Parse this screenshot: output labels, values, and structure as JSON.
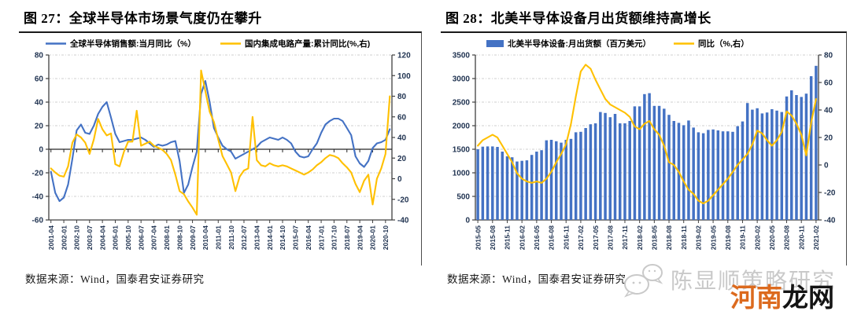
{
  "figures": [
    {
      "title": "图 27：全球半导体市场景气度仍在攀升",
      "source_label": "数据来源：Wind，国泰君安证券研究"
    },
    {
      "title": "图 28：北美半导体设备月出货额维持高增长",
      "source_label": "数据来源：Wind，国泰君安证券研究"
    }
  ],
  "watermark": {
    "icon": "wechat-bubbles-icon",
    "text_gray": "陈显顺策略研究",
    "text_orange": "河南",
    "text_black": "龙网",
    "color_gray": "#c9c9c9",
    "color_orange": "#DC6A1E"
  },
  "colors": {
    "series_blue": "#4472C4",
    "series_yellow": "#FFC000",
    "axis_text": "#1F3250",
    "axis_line": "#404040",
    "gridline": "#cfcfcf"
  },
  "chart_data": [
    {
      "type": "line",
      "title": "图 27：全球半导体市场景气度仍在攀升",
      "legend": [
        "全球半导体销售额:当月同比（%）",
        "国内集成电路产量:累计同比(%,右)"
      ],
      "legend_position": "top",
      "grid": true,
      "ylim_left": [
        -60,
        80
      ],
      "yticks_left": [
        -60,
        -40,
        -20,
        0,
        20,
        40,
        60,
        80
      ],
      "ylim_right": [
        -40,
        120
      ],
      "yticks_right": [
        -40,
        -20,
        0,
        20,
        40,
        60,
        80,
        100,
        120
      ],
      "x_tick_step": 3,
      "x_ticks": [
        "2001-04",
        "2002-01",
        "2002-10",
        "2003-07",
        "2004-04",
        "2005-01",
        "2005-10",
        "2006-07",
        "2007-04",
        "2008-01",
        "2008-10",
        "2009-07",
        "2010-04",
        "2011-01",
        "2011-10",
        "2012-07",
        "2013-04",
        "2014-01",
        "2014-10",
        "2015-07",
        "2016-04",
        "2017-01",
        "2017-10",
        "2018-07",
        "2019-04",
        "2020-01",
        "2020-10"
      ],
      "x": [
        "2001-04",
        "2001-07",
        "2001-10",
        "2002-01",
        "2002-04",
        "2002-07",
        "2002-10",
        "2003-01",
        "2003-04",
        "2003-07",
        "2003-10",
        "2004-01",
        "2004-04",
        "2004-07",
        "2004-10",
        "2005-01",
        "2005-04",
        "2005-07",
        "2005-10",
        "2006-01",
        "2006-04",
        "2006-07",
        "2006-10",
        "2007-01",
        "2007-04",
        "2007-07",
        "2007-10",
        "2008-01",
        "2008-04",
        "2008-07",
        "2008-10",
        "2009-01",
        "2009-04",
        "2009-07",
        "2009-10",
        "2010-01",
        "2010-04",
        "2010-07",
        "2010-10",
        "2011-01",
        "2011-04",
        "2011-07",
        "2011-10",
        "2012-01",
        "2012-04",
        "2012-07",
        "2012-10",
        "2013-01",
        "2013-04",
        "2013-07",
        "2013-10",
        "2014-01",
        "2014-04",
        "2014-07",
        "2014-10",
        "2015-01",
        "2015-04",
        "2015-07",
        "2015-10",
        "2016-01",
        "2016-04",
        "2016-07",
        "2016-10",
        "2017-01",
        "2017-04",
        "2017-07",
        "2017-10",
        "2018-01",
        "2018-04",
        "2018-07",
        "2018-10",
        "2019-01",
        "2019-04",
        "2019-07",
        "2019-10",
        "2020-01",
        "2020-04",
        "2020-07",
        "2020-10",
        "2021-01"
      ],
      "series": [
        {
          "name": "全球半导体销售额:当月同比（%）",
          "axis": "left",
          "type": "line",
          "color": "#4472C4",
          "values": [
            -19,
            -37,
            -44,
            -41,
            -30,
            -8,
            16,
            21,
            14,
            13,
            20,
            30,
            36,
            40,
            27,
            13,
            6,
            7,
            8,
            8,
            9,
            10,
            8,
            5,
            2,
            4,
            3,
            4,
            6,
            7,
            -10,
            -37,
            -30,
            -15,
            -2,
            47,
            58,
            40,
            18,
            10,
            3,
            0,
            -2,
            -8,
            -6,
            -4,
            -2,
            0,
            2,
            6,
            8,
            10,
            9,
            8,
            10,
            8,
            5,
            -2,
            -6,
            -7,
            -6,
            0,
            5,
            14,
            21,
            24,
            26,
            26,
            24,
            18,
            12,
            -6,
            -12,
            -15,
            -10,
            1,
            5,
            6,
            8,
            17
          ]
        },
        {
          "name": "国内集成电路产量:累计同比(%,右)",
          "axis": "right",
          "type": "line",
          "color": "#FFC000",
          "values": [
            10,
            6,
            3,
            2,
            12,
            35,
            43,
            40,
            35,
            24,
            38,
            58,
            48,
            42,
            44,
            14,
            12,
            26,
            36,
            36,
            66,
            32,
            34,
            36,
            32,
            30,
            28,
            24,
            18,
            4,
            -12,
            -15,
            -22,
            -28,
            -35,
            105,
            85,
            65,
            55,
            38,
            22,
            14,
            6,
            -12,
            2,
            8,
            10,
            60,
            18,
            13,
            12,
            15,
            13,
            12,
            13,
            12,
            10,
            8,
            6,
            4,
            6,
            9,
            13,
            16,
            20,
            23,
            22,
            20,
            15,
            11,
            6,
            -5,
            -13,
            -2,
            4,
            -25,
            0,
            10,
            24,
            80
          ]
        }
      ]
    },
    {
      "type": "bar",
      "title": "图 28：北美半导体设备月出货额维持高增长",
      "legend": [
        "北美半导体设备:月出货额（百万美元）",
        "同比（%,右）"
      ],
      "legend_position": "top",
      "grid": true,
      "ylim_left": [
        0,
        3500
      ],
      "yticks_left": [
        0,
        500,
        1000,
        1500,
        2000,
        2500,
        3000,
        3500
      ],
      "ylim_right": [
        -40,
        80
      ],
      "yticks_right": [
        -40,
        -20,
        0,
        20,
        40,
        60,
        80
      ],
      "x_tick_step": 3,
      "x_ticks": [
        "2015-05",
        "2015-08",
        "2015-11",
        "2016-02",
        "2016-05",
        "2016-08",
        "2016-11",
        "2017-02",
        "2017-05",
        "2017-08",
        "2017-11",
        "2018-02",
        "2018-05",
        "2018-08",
        "2018-11",
        "2019-02",
        "2019-05",
        "2019-08",
        "2019-11",
        "2020-02",
        "2020-05",
        "2020-08",
        "2020-11",
        "2021-02"
      ],
      "x": [
        "2015-05",
        "2015-06",
        "2015-07",
        "2015-08",
        "2015-09",
        "2015-10",
        "2015-11",
        "2015-12",
        "2016-01",
        "2016-02",
        "2016-03",
        "2016-04",
        "2016-05",
        "2016-06",
        "2016-07",
        "2016-08",
        "2016-09",
        "2016-10",
        "2016-11",
        "2016-12",
        "2017-01",
        "2017-02",
        "2017-03",
        "2017-04",
        "2017-05",
        "2017-06",
        "2017-07",
        "2017-08",
        "2017-09",
        "2017-10",
        "2017-11",
        "2017-12",
        "2018-01",
        "2018-02",
        "2018-03",
        "2018-04",
        "2018-05",
        "2018-06",
        "2018-07",
        "2018-08",
        "2018-09",
        "2018-10",
        "2018-11",
        "2018-12",
        "2019-01",
        "2019-02",
        "2019-03",
        "2019-04",
        "2019-05",
        "2019-06",
        "2019-07",
        "2019-08",
        "2019-09",
        "2019-10",
        "2019-11",
        "2019-12",
        "2020-01",
        "2020-02",
        "2020-03",
        "2020-04",
        "2020-05",
        "2020-06",
        "2020-07",
        "2020-08",
        "2020-09",
        "2020-10",
        "2020-11",
        "2020-12",
        "2021-01",
        "2021-02"
      ],
      "series": [
        {
          "name": "北美半导体设备:月出货额（百万美元）",
          "axis": "left",
          "type": "bar",
          "color": "#4472C4",
          "values": [
            1500,
            1555,
            1560,
            1560,
            1550,
            1450,
            1350,
            1330,
            1240,
            1255,
            1265,
            1380,
            1450,
            1480,
            1690,
            1700,
            1670,
            1640,
            1700,
            1720,
            1860,
            1870,
            1950,
            2030,
            2050,
            2290,
            2270,
            2180,
            2250,
            2050,
            2050,
            2100,
            2410,
            2410,
            2670,
            2690,
            2420,
            2420,
            2360,
            2230,
            2100,
            2060,
            2010,
            2110,
            1960,
            1860,
            1840,
            1910,
            1920,
            1900,
            1880,
            1880,
            1870,
            1990,
            2090,
            2480,
            2340,
            2370,
            2260,
            2280,
            2350,
            2320,
            2290,
            2620,
            2750,
            2650,
            2610,
            2680,
            3050,
            3270
          ]
        },
        {
          "name": "同比（%,右）",
          "axis": "right",
          "type": "line",
          "color": "#FFC000",
          "values": [
            14,
            18,
            20,
            22,
            20,
            14,
            8,
            2,
            -6,
            -10,
            -12,
            -13,
            -12,
            -13,
            -10,
            -5,
            2,
            8,
            15,
            30,
            50,
            68,
            73,
            70,
            62,
            55,
            48,
            44,
            42,
            40,
            38,
            35,
            28,
            26,
            30,
            32,
            26,
            22,
            14,
            2,
            0,
            -5,
            -12,
            -18,
            -21,
            -26,
            -28,
            -26,
            -22,
            -18,
            -14,
            -10,
            -5,
            0,
            4,
            8,
            15,
            25,
            23,
            18,
            14,
            18,
            24,
            39,
            36,
            30,
            22,
            7,
            31,
            48
          ]
        }
      ]
    }
  ]
}
